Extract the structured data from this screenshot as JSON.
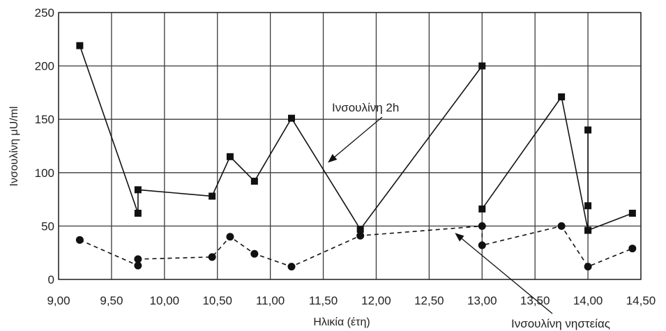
{
  "chart_data": {
    "type": "line",
    "xlabel": "Ηλικία (έτη)",
    "ylabel": "Ινσουλίνη μU/ml",
    "xlim": [
      9.0,
      14.5
    ],
    "ylim": [
      0,
      250
    ],
    "x_ticks": [
      "9,00",
      "9,50",
      "10,00",
      "10,50",
      "11,00",
      "11,50",
      "12,00",
      "12,50",
      "13,00",
      "13,50",
      "14,00",
      "14,50"
    ],
    "y_ticks": [
      "0",
      "50",
      "100",
      "150",
      "200",
      "250"
    ],
    "grid": true,
    "series": [
      {
        "name": "Ινσουλίνη 2h",
        "marker": "square",
        "linestyle": "solid",
        "points": [
          [
            9.2,
            219
          ],
          [
            9.75,
            62
          ],
          [
            9.75,
            84
          ],
          [
            10.45,
            78
          ],
          [
            10.62,
            115
          ],
          [
            10.85,
            92
          ],
          [
            11.2,
            151
          ],
          [
            11.85,
            47
          ],
          [
            13.0,
            200
          ],
          [
            13.0,
            66
          ],
          [
            13.75,
            171
          ],
          [
            14.0,
            46
          ],
          [
            14.0,
            69
          ],
          [
            14.0,
            140
          ],
          [
            14.0,
            46
          ],
          [
            14.42,
            62
          ]
        ]
      },
      {
        "name": "Ινσουλίνη νηστείας",
        "marker": "circle",
        "linestyle": "dashed",
        "points": [
          [
            9.2,
            37
          ],
          [
            9.75,
            13
          ],
          [
            9.75,
            19
          ],
          [
            10.45,
            21
          ],
          [
            10.62,
            40
          ],
          [
            10.85,
            24
          ],
          [
            11.2,
            12
          ],
          [
            11.85,
            41
          ],
          [
            13.0,
            50
          ],
          [
            13.0,
            32
          ],
          [
            13.75,
            50
          ],
          [
            14.0,
            12
          ],
          [
            14.42,
            29
          ]
        ]
      }
    ],
    "annotations": [
      {
        "text": "Ινσουλίνη 2h",
        "points_to": [
          11.55,
          110
        ]
      },
      {
        "text": "Ινσουλίνη νηστείας",
        "points_to": [
          12.75,
          43
        ]
      }
    ]
  }
}
